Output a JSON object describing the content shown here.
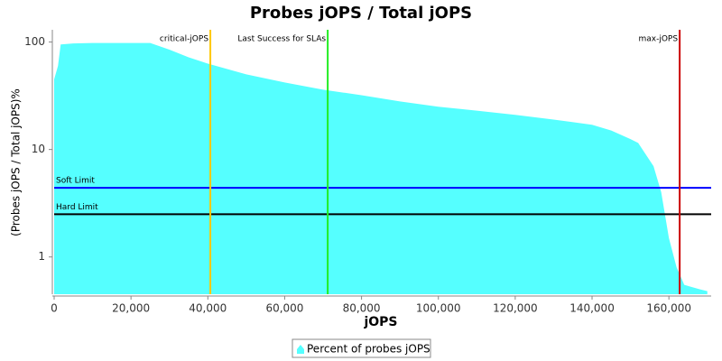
{
  "chart_data": {
    "type": "area",
    "title": "Probes jOPS / Total jOPS",
    "xlabel": "jOPS",
    "ylabel": "(Probes jOPS / Total jOPS)%",
    "log_y": true,
    "x": [
      0,
      1000,
      1700,
      5000,
      10000,
      25000,
      30000,
      35000,
      40000,
      50000,
      60000,
      70000,
      80000,
      90000,
      100000,
      110000,
      120000,
      130000,
      140000,
      145000,
      150000,
      152000,
      156000,
      158000,
      160000,
      162000,
      164000,
      168000,
      170000
    ],
    "series": [
      {
        "name": "Percent of probes jOPS",
        "color": "#55ffff",
        "values": [
          45,
          60,
          95,
          97,
          98,
          98,
          85,
          72,
          63,
          50,
          42,
          36,
          32,
          28,
          25,
          23,
          21,
          19,
          17,
          15,
          12.5,
          11.5,
          7,
          4,
          1.5,
          0.8,
          0.55,
          0.5,
          0.48
        ]
      }
    ],
    "xlim": [
      0,
      171000
    ],
    "xticks": [
      0,
      {
        "value": 20000,
        "label": "20,000"
      },
      {
        "value": 40000,
        "label": "40,000"
      },
      {
        "value": 60000,
        "label": "60,000"
      },
      {
        "value": 80000,
        "label": "80,000"
      },
      {
        "value": 100000,
        "label": "100,000"
      },
      {
        "value": 120000,
        "label": "120,000"
      },
      {
        "value": 140000,
        "label": "140,000"
      },
      {
        "value": 160000,
        "label": "160,000"
      }
    ],
    "ylim": [
      0.45,
      130
    ],
    "yticks": [
      1,
      10,
      100
    ],
    "vlines": [
      {
        "label": "critical-jOPS",
        "value": 40650,
        "color": "#ffc800"
      },
      {
        "label": "Last Success for SLAs",
        "value": 71200,
        "color": "#22ee22"
      },
      {
        "label": "max-jOPS",
        "value": 162800,
        "color": "#cc0000"
      }
    ],
    "hlines": [
      {
        "label": "Soft Limit",
        "value": 4.4,
        "color": "#0000ff"
      },
      {
        "label": "Hard Limit",
        "value": 2.5,
        "color": "#000000"
      }
    ]
  }
}
